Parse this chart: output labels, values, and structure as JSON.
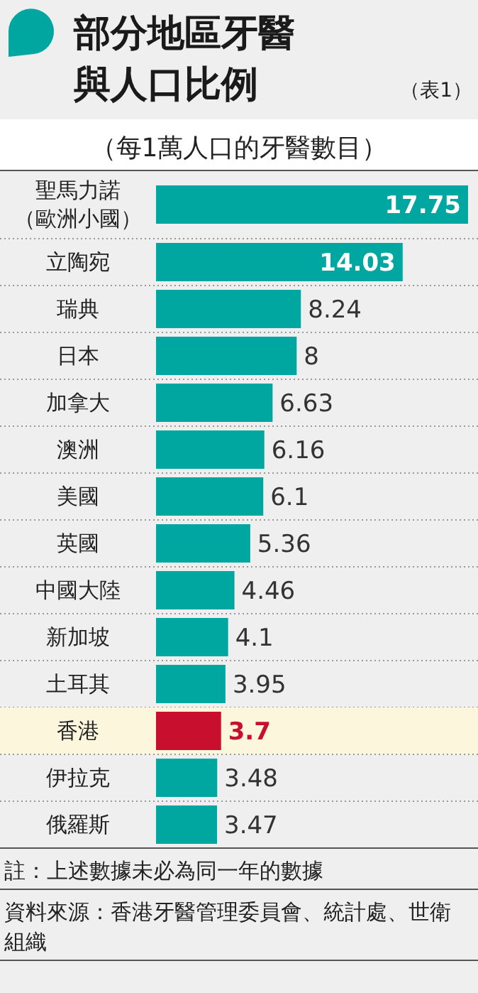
{
  "chart_data": {
    "type": "bar",
    "orientation": "horizontal",
    "title": "部分地區牙醫與人口比例",
    "subtitle": "（每1萬人口的牙醫數目）",
    "categories": [
      "聖馬力諾（歐洲小國）",
      "立陶宛",
      "瑞典",
      "日本",
      "加拿大",
      "澳洲",
      "美國",
      "英國",
      "中國大陸",
      "新加坡",
      "土耳其",
      "香港",
      "伊拉克",
      "俄羅斯"
    ],
    "values": [
      17.75,
      14.03,
      8.24,
      8,
      6.63,
      6.16,
      6.1,
      5.36,
      4.46,
      4.1,
      3.95,
      3.7,
      3.48,
      3.47
    ],
    "color": "#00a6a0",
    "colors": [
      "#00a6a0",
      "#00a6a0",
      "#00a6a0",
      "#00a6a0",
      "#00a6a0",
      "#00a6a0",
      "#00a6a0",
      "#00a6a0",
      "#00a6a0",
      "#00a6a0",
      "#00a6a0",
      "#c8102e",
      "#00a6a0",
      "#00a6a0"
    ],
    "data_labels": true,
    "annotations": [
      "（表1）",
      "註：上述數據未必為同一年的數據",
      "資料來源：香港牙醫管理委員會、統計處、世衛組織"
    ]
  }
}
